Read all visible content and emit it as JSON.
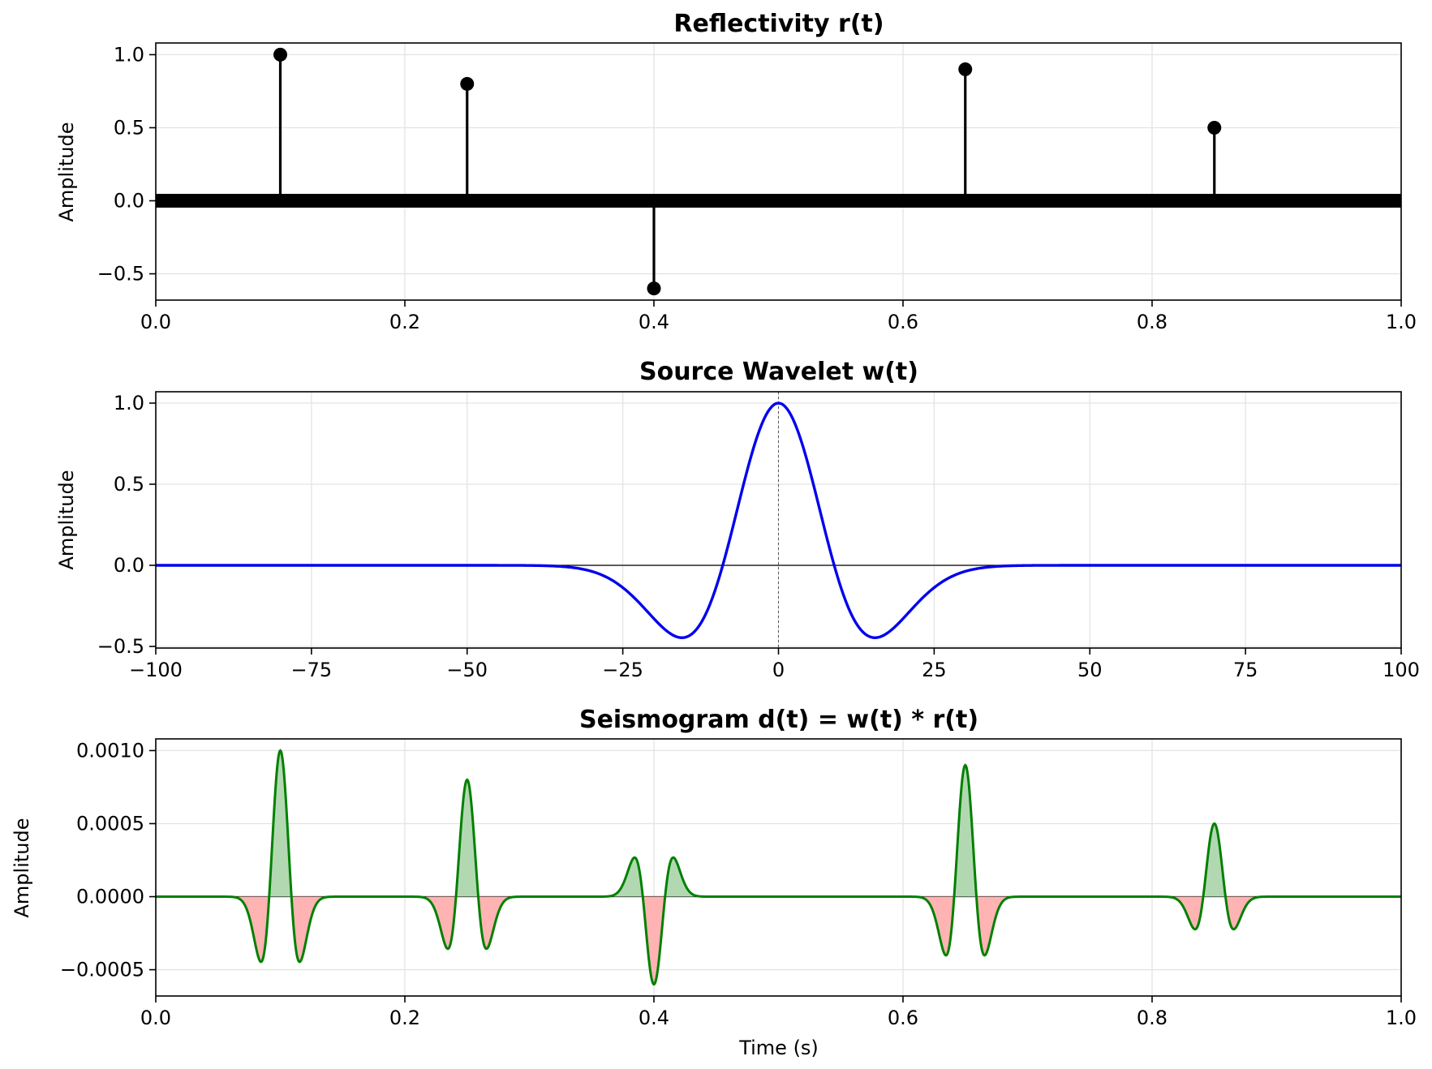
{
  "chart_data": [
    {
      "type": "stem",
      "title": "Reflectivity r(t)",
      "xlabel": "",
      "ylabel": "Amplitude",
      "xlim": [
        0.0,
        1.0
      ],
      "ylim": [
        -0.68,
        1.08
      ],
      "xticks": [
        0.0,
        0.2,
        0.4,
        0.6,
        0.8,
        1.0
      ],
      "xtick_labels": [
        "0.0",
        "0.2",
        "0.4",
        "0.6",
        "0.8",
        "1.0"
      ],
      "yticks": [
        -0.5,
        0.0,
        0.5,
        1.0
      ],
      "ytick_labels": [
        "−0.5",
        "0.0",
        "0.5",
        "1.0"
      ],
      "grid": true,
      "stem_color": "#000000",
      "series": [
        {
          "name": "reflectivity",
          "x": [
            0.1,
            0.25,
            0.4,
            0.65,
            0.85
          ],
          "values": [
            1.0,
            0.8,
            -0.6,
            0.9,
            0.5
          ]
        }
      ]
    },
    {
      "type": "line",
      "title": "Source Wavelet w(t)",
      "xlabel": "",
      "ylabel": "Amplitude",
      "xlim": [
        -100,
        100
      ],
      "ylim": [
        -0.51,
        1.07
      ],
      "xticks": [
        -100,
        -75,
        -50,
        -25,
        0,
        25,
        50,
        75,
        100
      ],
      "xtick_labels": [
        "−100",
        "−75",
        "−50",
        "−25",
        "0",
        "25",
        "50",
        "75",
        "100"
      ],
      "yticks": [
        -0.5,
        0.0,
        0.5,
        1.0
      ],
      "ytick_labels": [
        "−0.5",
        "0.0",
        "0.5",
        "1.0"
      ],
      "grid": true,
      "line_color": "#0000ee",
      "series": [
        {
          "name": "wavelet",
          "kind": "ricker",
          "peak_amplitude": 1.0,
          "center": 0,
          "trough_amplitude": -0.446,
          "trough_positions": [
            -15.5,
            15.5
          ]
        }
      ]
    },
    {
      "type": "area",
      "title": "Seismogram d(t) = w(t) * r(t)",
      "xlabel": "Time (s)",
      "ylabel": "Amplitude",
      "xlim": [
        0.0,
        1.0
      ],
      "ylim": [
        -0.00068,
        0.00108
      ],
      "xticks": [
        0.0,
        0.2,
        0.4,
        0.6,
        0.8,
        1.0
      ],
      "xtick_labels": [
        "0.0",
        "0.2",
        "0.4",
        "0.6",
        "0.8",
        "1.0"
      ],
      "yticks": [
        -0.0005,
        0.0,
        0.0005,
        0.001
      ],
      "ytick_labels": [
        "−0.0005",
        "0.0000",
        "0.0005",
        "0.0010"
      ],
      "grid": true,
      "line_color": "#008000",
      "positive_fill": "#b2d8b2",
      "negative_fill": "#ffb3b3",
      "series": [
        {
          "name": "seismogram",
          "reflector_times": [
            0.1,
            0.25,
            0.4,
            0.65,
            0.85
          ],
          "reflector_amplitudes": [
            0.001,
            0.0008,
            -0.0006,
            0.0009,
            0.0005
          ],
          "trough_ratio": -0.446,
          "trough_offset_s": 0.0155
        }
      ]
    }
  ]
}
